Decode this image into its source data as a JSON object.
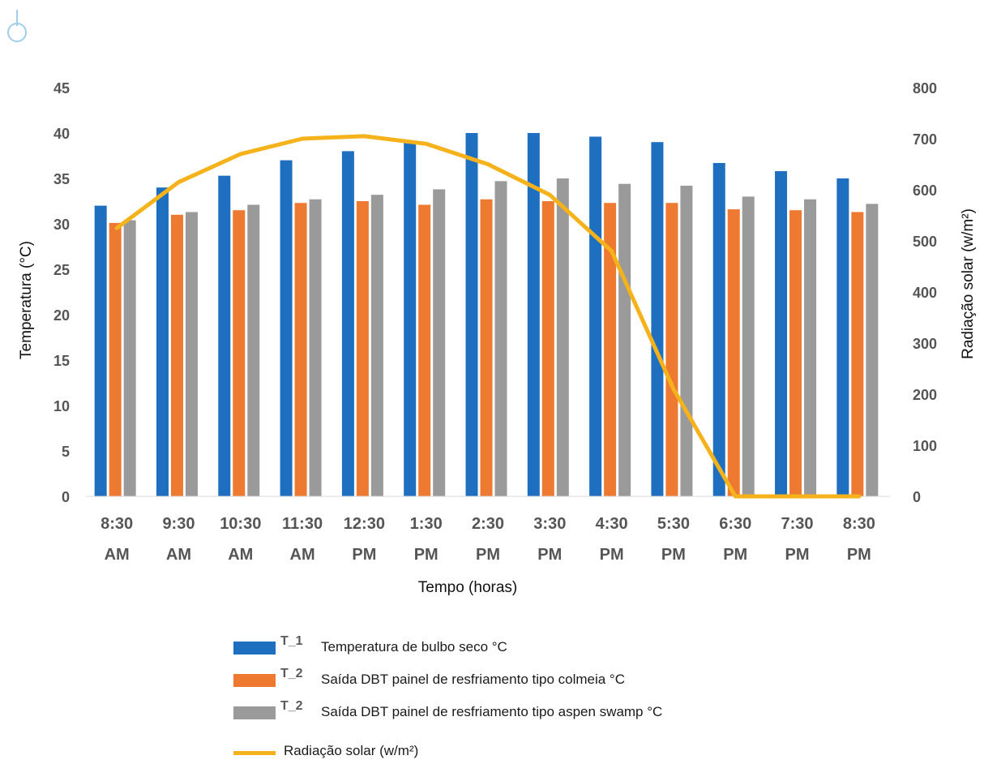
{
  "colors": {
    "t1": "#1f6fc0",
    "t2a": "#ee7a31",
    "t2b": "#9a9a9a",
    "rad": "#f5b21b",
    "axis_text": "#555555",
    "title_text": "#111111"
  },
  "chart_data": {
    "type": "bar",
    "categories": [
      [
        "8:30",
        "AM"
      ],
      [
        "9:30",
        "AM"
      ],
      [
        "10:30",
        "AM"
      ],
      [
        "11:30",
        "AM"
      ],
      [
        "12:30",
        "PM"
      ],
      [
        "1:30",
        "PM"
      ],
      [
        "2:30",
        "PM"
      ],
      [
        "3:30",
        "PM"
      ],
      [
        "4:30",
        "PM"
      ],
      [
        "5:30",
        "PM"
      ],
      [
        "6:30",
        "PM"
      ],
      [
        "7:30",
        "PM"
      ],
      [
        "8:30",
        "PM"
      ]
    ],
    "xlabel": "Tempo (horas)",
    "ylabel": "Temperatura (°C)",
    "y2label": "Radiação solar (w/m²)",
    "ylim": [
      0,
      45
    ],
    "y2lim": [
      0,
      800
    ],
    "yticks": [
      "0",
      "5",
      "10",
      "15",
      "20",
      "25",
      "30",
      "35",
      "40",
      "45"
    ],
    "y2ticks": [
      "0",
      "100",
      "200",
      "300",
      "400",
      "500",
      "600",
      "700",
      "800"
    ],
    "grid": false,
    "legend_position": "bottom",
    "series": [
      {
        "key": "t1",
        "code": "T_1",
        "name": "Temperatura de bulbo seco °C",
        "type": "bar",
        "axis": "left",
        "values": [
          32.0,
          34.0,
          35.3,
          37.0,
          38.0,
          39.0,
          40.0,
          40.0,
          39.6,
          39.0,
          36.7,
          35.8,
          35.0
        ]
      },
      {
        "key": "t2a",
        "code": "T_2",
        "name": "Saída DBT painel de resfriamento tipo colmeia °C",
        "type": "bar",
        "axis": "left",
        "values": [
          30.1,
          31.0,
          31.5,
          32.3,
          32.5,
          32.1,
          32.7,
          32.5,
          32.3,
          32.3,
          31.6,
          31.5,
          31.3
        ]
      },
      {
        "key": "t2b",
        "code": "T_2",
        "name": "Saída DBT painel de resfriamento tipo aspen swamp °C",
        "type": "bar",
        "axis": "left",
        "values": [
          30.4,
          31.3,
          32.1,
          32.7,
          33.2,
          33.8,
          34.7,
          35.0,
          34.4,
          34.2,
          33.0,
          32.7,
          32.2
        ]
      },
      {
        "key": "rad",
        "code": "",
        "name": "Radiação solar (w/m²)",
        "type": "line",
        "axis": "right",
        "values": [
          525,
          615,
          670,
          700,
          705,
          690,
          650,
          590,
          480,
          210,
          0,
          0,
          0
        ]
      }
    ]
  }
}
